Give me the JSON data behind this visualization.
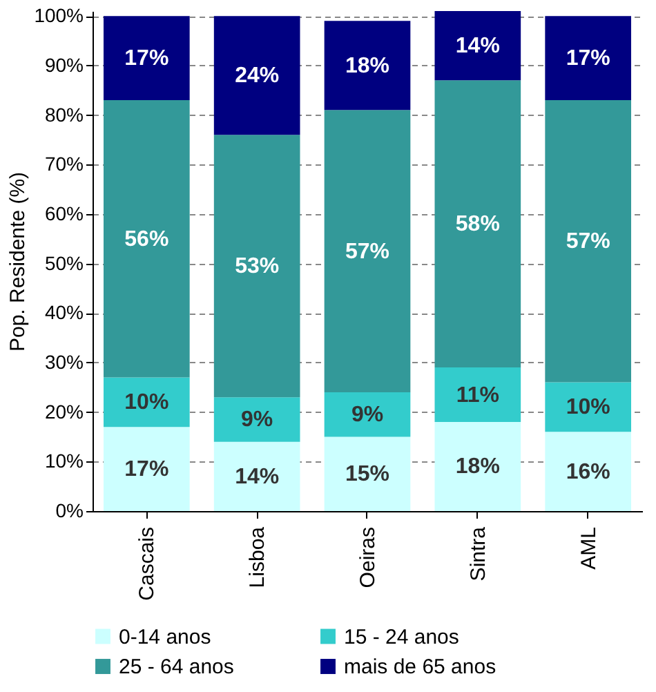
{
  "chart_data": {
    "type": "bar",
    "stacked": true,
    "ylabel": "Pop. Residente (%)",
    "categories": [
      "Cascais",
      "Lisboa",
      "Oeiras",
      "Sintra",
      "AML"
    ],
    "series": [
      {
        "name": "0-14 anos",
        "color": "#ccffff",
        "values": [
          17,
          14,
          15,
          18,
          16
        ],
        "value_labels": [
          "17%",
          "14%",
          "15%",
          "18%",
          "16%"
        ]
      },
      {
        "name": "15 - 24 anos",
        "color": "#33cccc",
        "values": [
          10,
          9,
          9,
          11,
          10
        ],
        "value_labels": [
          "10%",
          "9%",
          "9%",
          "11%",
          "10%"
        ]
      },
      {
        "name": "25 - 64 anos",
        "color": "#339999",
        "values": [
          56,
          53,
          57,
          58,
          57
        ],
        "value_labels": [
          "56%",
          "53%",
          "57%",
          "58%",
          "57%"
        ]
      },
      {
        "name": "mais de 65 anos",
        "color": "#000080",
        "values": [
          17,
          24,
          18,
          14,
          17
        ],
        "value_labels": [
          "17%",
          "24%",
          "18%",
          "14%",
          "17%"
        ]
      }
    ],
    "ylim": [
      0,
      101
    ],
    "yticks": [
      {
        "value": 0,
        "label": "0%"
      },
      {
        "value": 10,
        "label": "10%"
      },
      {
        "value": 20,
        "label": "20%"
      },
      {
        "value": 30,
        "label": "30%"
      },
      {
        "value": 40,
        "label": "40%"
      },
      {
        "value": 50,
        "label": "50%"
      },
      {
        "value": 60,
        "label": "60%"
      },
      {
        "value": 70,
        "label": "70%"
      },
      {
        "value": 80,
        "label": "80%"
      },
      {
        "value": 90,
        "label": "90%"
      },
      {
        "value": 100,
        "label": "100%"
      }
    ],
    "grid": "y",
    "legend": "bottom"
  }
}
